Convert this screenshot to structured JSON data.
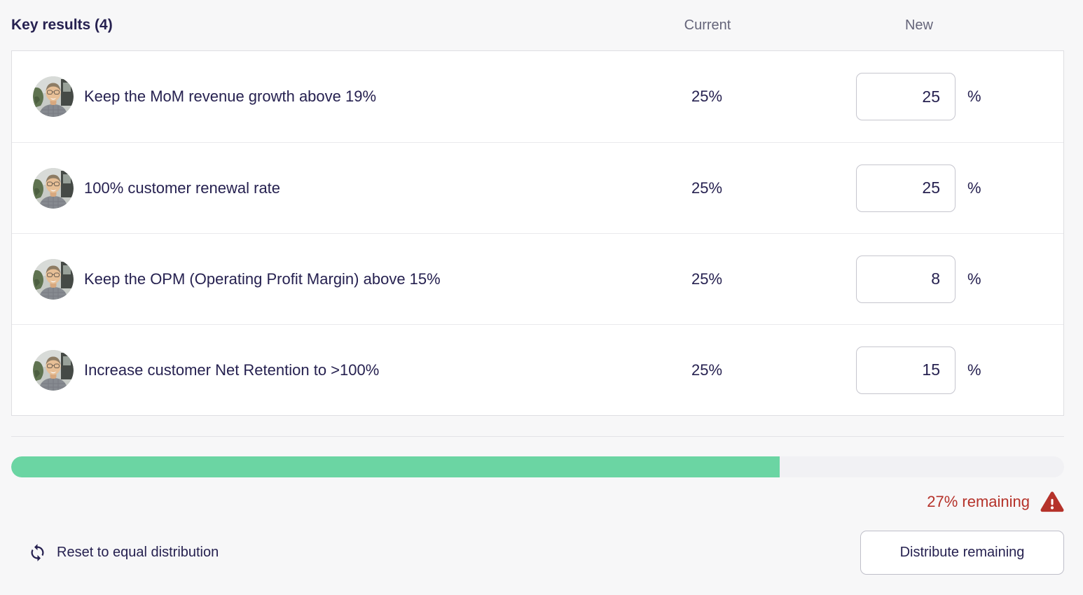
{
  "header": {
    "title": "Key results (4)",
    "current_column": "Current",
    "new_column": "New"
  },
  "rows": [
    {
      "name": "Keep the MoM revenue growth above 19%",
      "current": "25%",
      "new_value": "25",
      "unit": "%"
    },
    {
      "name": "100% customer renewal rate",
      "current": "25%",
      "new_value": "25",
      "unit": "%"
    },
    {
      "name": "Keep the OPM (Operating Profit Margin) above 15%",
      "current": "25%",
      "new_value": "8",
      "unit": "%"
    },
    {
      "name": "Increase customer Net Retention to >100%",
      "current": "25%",
      "new_value": "15",
      "unit": "%"
    }
  ],
  "progress": {
    "allocated_percent": 73,
    "remaining_label": "27% remaining"
  },
  "footer": {
    "reset_label": "Reset to equal distribution",
    "distribute_label": "Distribute remaining"
  },
  "colors": {
    "accent_green": "#6bd5a3",
    "alert_red": "#b5322a",
    "text_primary": "#262150",
    "text_muted": "#65657a"
  }
}
